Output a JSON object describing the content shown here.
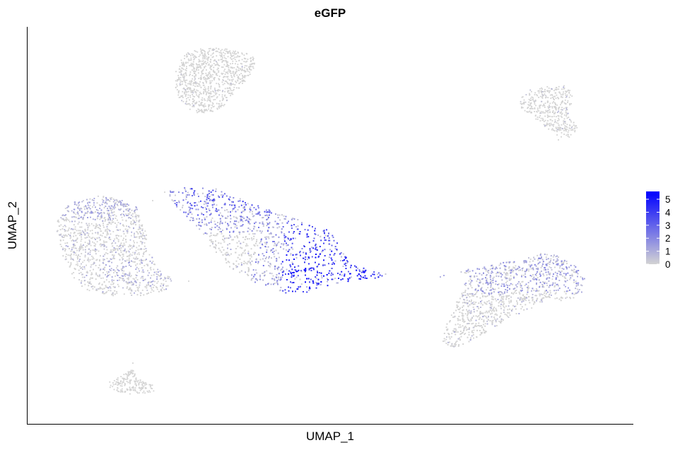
{
  "chart_data": {
    "type": "scatter",
    "title": "eGFP",
    "xlabel": "UMAP_1",
    "ylabel": "UMAP_2",
    "grid": false,
    "legend_placement": "right",
    "color_scale": {
      "low_color": "#d3d3d3",
      "high_color": "#0000ff",
      "min": 0,
      "max": 5.6,
      "ticks": [
        {
          "value": 0,
          "label": "0"
        },
        {
          "value": 1,
          "label": "1"
        },
        {
          "value": 2,
          "label": "2"
        },
        {
          "value": 3,
          "label": "3"
        },
        {
          "value": 4,
          "label": "4"
        },
        {
          "value": 5,
          "label": "5"
        }
      ]
    }
  }
}
